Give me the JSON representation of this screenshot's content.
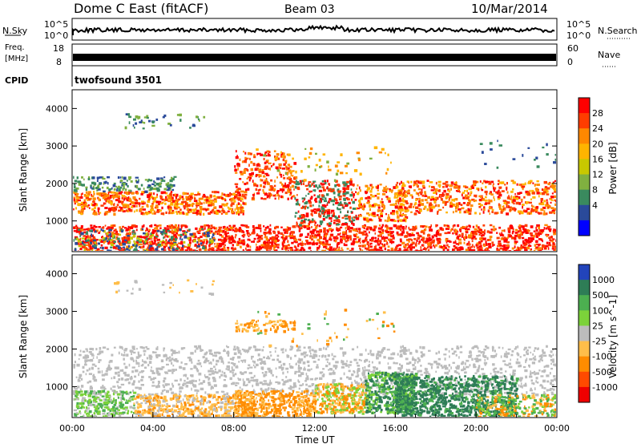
{
  "header": {
    "title": "Dome C East (fitACF)",
    "beam": "Beam 03",
    "date": "10/Mar/2014"
  },
  "top_panels": {
    "nsky_label": "N.Sky",
    "nsky_exp_top": "10^5",
    "nsky_exp_bottom": "10^0",
    "nsearch_label": "N.Search",
    "nsearch_exp_top": "10^5",
    "nsearch_exp_bottom": "10^0",
    "freq_label_1": "Freq.",
    "freq_label_2": "[MHz]",
    "freq_ticks": [
      "18",
      "8"
    ],
    "nave_label": "Nave",
    "nave_ticks": [
      "60",
      "0"
    ],
    "cpid_label": "CPID",
    "cpid_value": "twofsound 3501"
  },
  "range_axis": {
    "label": "Slant Range [km]",
    "ticks": [
      "4000",
      "3000",
      "2000",
      "1000"
    ]
  },
  "time_axis": {
    "label": "Time UT",
    "ticks": [
      "00:00",
      "04:00",
      "08:00",
      "12:00",
      "16:00",
      "20:00",
      "00:00"
    ]
  },
  "power_scale": {
    "label": "Power [dB]",
    "ticks": [
      "28",
      "24",
      "20",
      "16",
      "12",
      "8",
      "4"
    ],
    "colors": [
      "#ff0000",
      "#ff3d00",
      "#ff8800",
      "#ffb400",
      "#c8c800",
      "#80b040",
      "#3a8a5e",
      "#2a4a9a",
      "#0000ff"
    ]
  },
  "velocity_scale": {
    "label": "Velocity [m s^-1]",
    "ticks": [
      "1000",
      "500",
      "100",
      "25",
      "-25",
      "-100",
      "-500",
      "-1000"
    ],
    "colors": [
      "#2244bb",
      "#2e7d56",
      "#4caf50",
      "#7cd23a",
      "#bcbcbc",
      "#ffbe4a",
      "#ff8c00",
      "#ff4a00",
      "#ee0000"
    ]
  },
  "chart_data": {
    "type": "heatmap",
    "x_range_hours": [
      0,
      24
    ],
    "y_range_km": [
      180,
      4500
    ],
    "panels": [
      {
        "name": "Power",
        "unit": "dB",
        "range": [
          0,
          32
        ]
      },
      {
        "name": "Velocity",
        "unit": "m s^-1",
        "range": [
          -1250,
          1250
        ]
      }
    ]
  }
}
